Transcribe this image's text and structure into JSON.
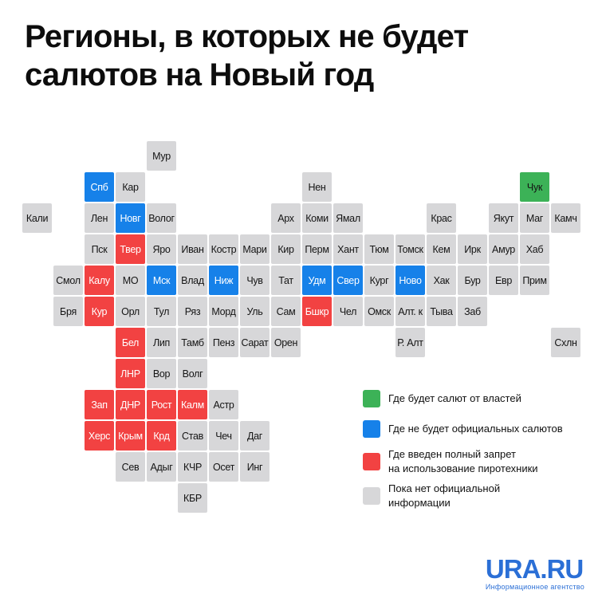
{
  "title": {
    "line1": "Регионы, в которых не будет",
    "line2": "салютов на Новый год"
  },
  "colors": {
    "background": "#ffffff",
    "title_text": "#0d0d0d",
    "tile_text_dark": "#151515",
    "tile_text_light": "#ffffff",
    "logo_blue": "#2b6fd6",
    "status": {
      "salute": "#3cb257",
      "no_salute": "#1681e9",
      "ban": "#f24242",
      "none": "#d7d7d9"
    }
  },
  "legend": {
    "items": [
      {
        "status": "salute",
        "lines": [
          "Где будет салют от властей"
        ]
      },
      {
        "status": "no_salute",
        "lines": [
          "Где не будет официальных салютов"
        ]
      },
      {
        "status": "ban",
        "lines": [
          "Где введен полный запрет",
          "на использование пиротехники"
        ]
      },
      {
        "status": "none",
        "lines": [
          "Пока нет официальной",
          "информации"
        ]
      }
    ]
  },
  "map": {
    "tiles": [
      {
        "label": "Мур",
        "col": 4,
        "row": 0,
        "status": "none"
      },
      {
        "label": "Спб",
        "col": 2,
        "row": 1,
        "status": "no_salute"
      },
      {
        "label": "Кар",
        "col": 3,
        "row": 1,
        "status": "none"
      },
      {
        "label": "Нен",
        "col": 9,
        "row": 1,
        "status": "none"
      },
      {
        "label": "Чук",
        "col": 16,
        "row": 1,
        "status": "salute"
      },
      {
        "label": "Кали",
        "col": 0,
        "row": 2,
        "status": "none"
      },
      {
        "label": "Лен",
        "col": 2,
        "row": 2,
        "status": "none"
      },
      {
        "label": "Новг",
        "col": 3,
        "row": 2,
        "status": "no_salute"
      },
      {
        "label": "Волог",
        "col": 4,
        "row": 2,
        "status": "none"
      },
      {
        "label": "Арх",
        "col": 8,
        "row": 2,
        "status": "none"
      },
      {
        "label": "Коми",
        "col": 9,
        "row": 2,
        "status": "none"
      },
      {
        "label": "Ямал",
        "col": 10,
        "row": 2,
        "status": "none"
      },
      {
        "label": "Крас",
        "col": 13,
        "row": 2,
        "status": "none"
      },
      {
        "label": "Якут",
        "col": 15,
        "row": 2,
        "status": "none"
      },
      {
        "label": "Маг",
        "col": 16,
        "row": 2,
        "status": "none"
      },
      {
        "label": "Камч",
        "col": 17,
        "row": 2,
        "status": "none"
      },
      {
        "label": "Пск",
        "col": 2,
        "row": 3,
        "status": "none"
      },
      {
        "label": "Твер",
        "col": 3,
        "row": 3,
        "status": "ban"
      },
      {
        "label": "Яро",
        "col": 4,
        "row": 3,
        "status": "none"
      },
      {
        "label": "Иван",
        "col": 5,
        "row": 3,
        "status": "none"
      },
      {
        "label": "Костр",
        "col": 6,
        "row": 3,
        "status": "none"
      },
      {
        "label": "Мари",
        "col": 7,
        "row": 3,
        "status": "none"
      },
      {
        "label": "Кир",
        "col": 8,
        "row": 3,
        "status": "none"
      },
      {
        "label": "Перм",
        "col": 9,
        "row": 3,
        "status": "none"
      },
      {
        "label": "Хант",
        "col": 10,
        "row": 3,
        "status": "none"
      },
      {
        "label": "Тюм",
        "col": 11,
        "row": 3,
        "status": "none"
      },
      {
        "label": "Томск",
        "col": 12,
        "row": 3,
        "status": "none"
      },
      {
        "label": "Кем",
        "col": 13,
        "row": 3,
        "status": "none"
      },
      {
        "label": "Ирк",
        "col": 14,
        "row": 3,
        "status": "none"
      },
      {
        "label": "Амур",
        "col": 15,
        "row": 3,
        "status": "none"
      },
      {
        "label": "Хаб",
        "col": 16,
        "row": 3,
        "status": "none"
      },
      {
        "label": "Смол",
        "col": 1,
        "row": 4,
        "status": "none"
      },
      {
        "label": "Калу",
        "col": 2,
        "row": 4,
        "status": "ban"
      },
      {
        "label": "МО",
        "col": 3,
        "row": 4,
        "status": "none"
      },
      {
        "label": "Мск",
        "col": 4,
        "row": 4,
        "status": "no_salute"
      },
      {
        "label": "Влад",
        "col": 5,
        "row": 4,
        "status": "none"
      },
      {
        "label": "Ниж",
        "col": 6,
        "row": 4,
        "status": "no_salute"
      },
      {
        "label": "Чув",
        "col": 7,
        "row": 4,
        "status": "none"
      },
      {
        "label": "Тат",
        "col": 8,
        "row": 4,
        "status": "none"
      },
      {
        "label": "Удм",
        "col": 9,
        "row": 4,
        "status": "no_salute"
      },
      {
        "label": "Свер",
        "col": 10,
        "row": 4,
        "status": "no_salute"
      },
      {
        "label": "Кург",
        "col": 11,
        "row": 4,
        "status": "none"
      },
      {
        "label": "Ново",
        "col": 12,
        "row": 4,
        "status": "no_salute"
      },
      {
        "label": "Хак",
        "col": 13,
        "row": 4,
        "status": "none"
      },
      {
        "label": "Бур",
        "col": 14,
        "row": 4,
        "status": "none"
      },
      {
        "label": "Евр",
        "col": 15,
        "row": 4,
        "status": "none"
      },
      {
        "label": "Прим",
        "col": 16,
        "row": 4,
        "status": "none"
      },
      {
        "label": "Бря",
        "col": 1,
        "row": 5,
        "status": "none"
      },
      {
        "label": "Кур",
        "col": 2,
        "row": 5,
        "status": "ban"
      },
      {
        "label": "Орл",
        "col": 3,
        "row": 5,
        "status": "none"
      },
      {
        "label": "Тул",
        "col": 4,
        "row": 5,
        "status": "none"
      },
      {
        "label": "Ряз",
        "col": 5,
        "row": 5,
        "status": "none"
      },
      {
        "label": "Морд",
        "col": 6,
        "row": 5,
        "status": "none"
      },
      {
        "label": "Уль",
        "col": 7,
        "row": 5,
        "status": "none"
      },
      {
        "label": "Сам",
        "col": 8,
        "row": 5,
        "status": "none"
      },
      {
        "label": "Бшкр",
        "col": 9,
        "row": 5,
        "status": "ban"
      },
      {
        "label": "Чел",
        "col": 10,
        "row": 5,
        "status": "none"
      },
      {
        "label": "Омск",
        "col": 11,
        "row": 5,
        "status": "none"
      },
      {
        "label": "Алт. к",
        "col": 12,
        "row": 5,
        "status": "none"
      },
      {
        "label": "Тыва",
        "col": 13,
        "row": 5,
        "status": "none"
      },
      {
        "label": "Заб",
        "col": 14,
        "row": 5,
        "status": "none"
      },
      {
        "label": "Бел",
        "col": 3,
        "row": 6,
        "status": "ban"
      },
      {
        "label": "Лип",
        "col": 4,
        "row": 6,
        "status": "none"
      },
      {
        "label": "Тамб",
        "col": 5,
        "row": 6,
        "status": "none"
      },
      {
        "label": "Пенз",
        "col": 6,
        "row": 6,
        "status": "none"
      },
      {
        "label": "Сарат",
        "col": 7,
        "row": 6,
        "status": "none"
      },
      {
        "label": "Орен",
        "col": 8,
        "row": 6,
        "status": "none"
      },
      {
        "label": "Р. Алт",
        "col": 12,
        "row": 6,
        "status": "none"
      },
      {
        "label": "Схлн",
        "col": 17,
        "row": 6,
        "status": "none"
      },
      {
        "label": "ЛНР",
        "col": 3,
        "row": 7,
        "status": "ban"
      },
      {
        "label": "Вор",
        "col": 4,
        "row": 7,
        "status": "none"
      },
      {
        "label": "Волг",
        "col": 5,
        "row": 7,
        "status": "none"
      },
      {
        "label": "Зап",
        "col": 2,
        "row": 8,
        "status": "ban"
      },
      {
        "label": "ДНР",
        "col": 3,
        "row": 8,
        "status": "ban"
      },
      {
        "label": "Рост",
        "col": 4,
        "row": 8,
        "status": "ban"
      },
      {
        "label": "Калм",
        "col": 5,
        "row": 8,
        "status": "ban"
      },
      {
        "label": "Астр",
        "col": 6,
        "row": 8,
        "status": "none"
      },
      {
        "label": "Херс",
        "col": 2,
        "row": 9,
        "status": "ban"
      },
      {
        "label": "Крым",
        "col": 3,
        "row": 9,
        "status": "ban"
      },
      {
        "label": "Крд",
        "col": 4,
        "row": 9,
        "status": "ban"
      },
      {
        "label": "Став",
        "col": 5,
        "row": 9,
        "status": "none"
      },
      {
        "label": "Чеч",
        "col": 6,
        "row": 9,
        "status": "none"
      },
      {
        "label": "Даг",
        "col": 7,
        "row": 9,
        "status": "none"
      },
      {
        "label": "Сев",
        "col": 3,
        "row": 10,
        "status": "none"
      },
      {
        "label": "Адыг",
        "col": 4,
        "row": 10,
        "status": "none"
      },
      {
        "label": "КЧР",
        "col": 5,
        "row": 10,
        "status": "none"
      },
      {
        "label": "Осет",
        "col": 6,
        "row": 10,
        "status": "none"
      },
      {
        "label": "Инг",
        "col": 7,
        "row": 10,
        "status": "none"
      },
      {
        "label": "КБР",
        "col": 5,
        "row": 11,
        "status": "none"
      }
    ]
  },
  "footer": {
    "logo": "URA.RU",
    "tagline": "Информационное агентство"
  }
}
